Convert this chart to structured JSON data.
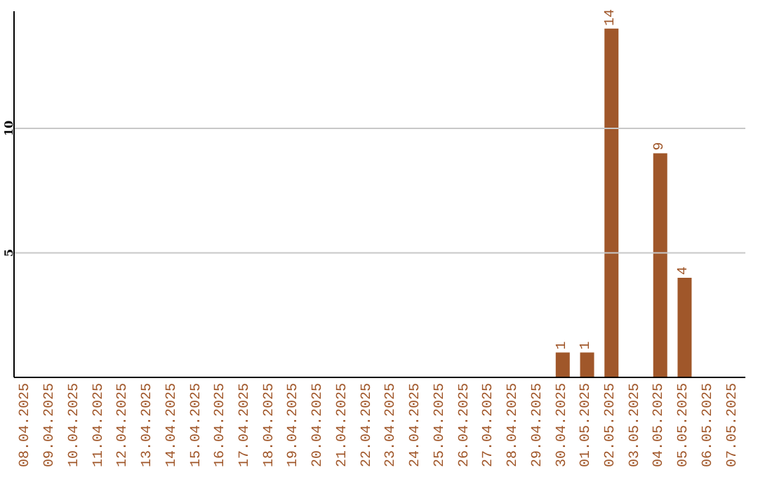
{
  "chart_data": {
    "type": "bar",
    "categories": [
      "08.04.2025",
      "09.04.2025",
      "10.04.2025",
      "11.04.2025",
      "12.04.2025",
      "13.04.2025",
      "14.04.2025",
      "15.04.2025",
      "16.04.2025",
      "17.04.2025",
      "18.04.2025",
      "19.04.2025",
      "20.04.2025",
      "21.04.2025",
      "22.04.2025",
      "23.04.2025",
      "24.04.2025",
      "25.04.2025",
      "26.04.2025",
      "27.04.2025",
      "28.04.2025",
      "29.04.2025",
      "30.04.2025",
      "01.05.2025",
      "02.05.2025",
      "03.05.2025",
      "04.05.2025",
      "05.05.2025",
      "06.05.2025",
      "07.05.2025"
    ],
    "values": [
      0,
      0,
      0,
      0,
      0,
      0,
      0,
      0,
      0,
      0,
      0,
      0,
      0,
      0,
      0,
      0,
      0,
      0,
      0,
      0,
      0,
      0,
      1,
      1,
      14,
      0,
      9,
      4,
      0,
      0
    ],
    "value_labels": [
      null,
      null,
      null,
      null,
      null,
      null,
      null,
      null,
      null,
      null,
      null,
      null,
      null,
      null,
      null,
      null,
      null,
      null,
      null,
      null,
      null,
      null,
      "1",
      "1",
      "14",
      null,
      "9",
      "4",
      null,
      null
    ],
    "color": "#a0572a",
    "ylim": [
      0,
      14.7
    ],
    "yticks": [
      5,
      10
    ],
    "grid": "y"
  }
}
